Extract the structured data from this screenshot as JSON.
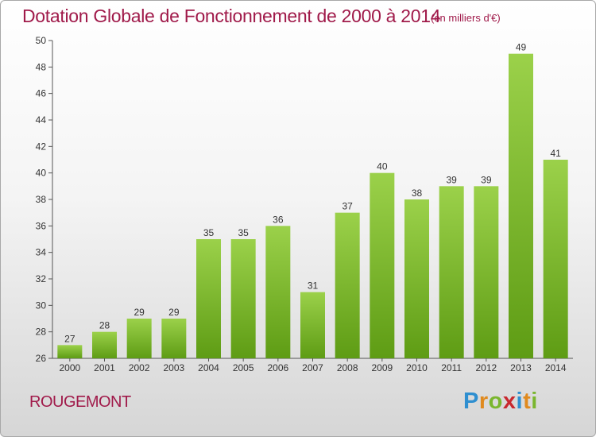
{
  "header": {
    "title": "Dotation Globale de Fonctionnement de 2000 à 2014",
    "unit": "(en milliers d'€)"
  },
  "commune": "ROUGEMONT",
  "logo": {
    "letters": [
      "P",
      "r",
      "o",
      "x",
      "i",
      "t",
      "i"
    ],
    "colors": [
      "#2f8fd0",
      "#e08a1e",
      "#7ab62e",
      "#c8282e",
      "#2f8fd0",
      "#e08a1e",
      "#7ab62e"
    ]
  },
  "colors": {
    "bar_light": "#9bd14a",
    "bar_dark": "#5e9c14",
    "title": "#a01a4a"
  },
  "chart_data": {
    "type": "bar",
    "title": "Dotation Globale de Fonctionnement de 2000 à 2014",
    "subtitle": "(en milliers d'€)",
    "categories": [
      "2000",
      "2001",
      "2002",
      "2003",
      "2004",
      "2005",
      "2006",
      "2007",
      "2008",
      "2009",
      "2010",
      "2011",
      "2012",
      "2013",
      "2014"
    ],
    "values": [
      27,
      28,
      29,
      29,
      35,
      35,
      36,
      31,
      37,
      40,
      38,
      39,
      39,
      49,
      41
    ],
    "ylim": [
      26,
      50
    ],
    "yticks": [
      26,
      28,
      30,
      32,
      34,
      36,
      38,
      40,
      42,
      44,
      46,
      48,
      50
    ],
    "grid": false,
    "legend": "none"
  }
}
